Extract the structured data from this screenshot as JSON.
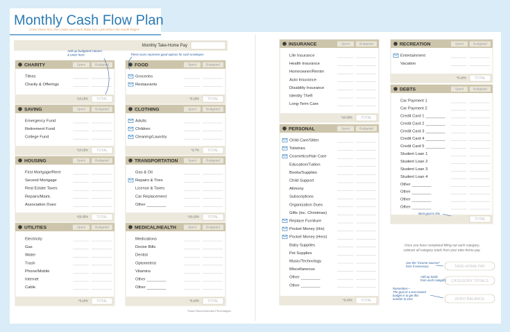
{
  "header": {
    "title": "Monthly Cash Flow Plan",
    "subtitle": "Cover these first, then make sure each dollar has a job before the month begins"
  },
  "take_home": {
    "label": "Monthly Take-Home Pay"
  },
  "sections": [
    {
      "title": "CHARITY",
      "spent": "Spent",
      "budgeted": "Budgeted",
      "items": [
        {
          "label": "Tithes"
        },
        {
          "label": "Charity & Offerings"
        }
      ],
      "percent": "*10-15%",
      "total": "TOTAL"
    },
    {
      "title": "SAVING",
      "spent": "Spent",
      "budgeted": "Budgeted",
      "items": [
        {
          "label": "Emergency Fund"
        },
        {
          "label": "Retirement Fund"
        },
        {
          "label": "College Fund"
        }
      ],
      "percent": "*10-15%",
      "total": "TOTAL"
    },
    {
      "title": "HOUSING",
      "spent": "Spent",
      "budgeted": "Budgeted",
      "items": [
        {
          "label": "First Mortgage/Rent"
        },
        {
          "label": "Second Mortgage"
        },
        {
          "label": "Real Estate Taxes"
        },
        {
          "label": "Repairs/Maint."
        },
        {
          "label": "Association Dues"
        }
      ],
      "percent": "*25-35%",
      "total": "TOTAL"
    },
    {
      "title": "UTILITIES",
      "spent": "Spent",
      "budgeted": "Budgeted",
      "items": [
        {
          "label": "Electricity"
        },
        {
          "label": "Gas"
        },
        {
          "label": "Water"
        },
        {
          "label": "Trash"
        },
        {
          "label": "Phone/Mobile"
        },
        {
          "label": "Internet"
        },
        {
          "label": "Cable"
        }
      ],
      "percent": "*5-10%",
      "total": "TOTAL"
    },
    {
      "title": "FOOD",
      "spent": "Spent",
      "budgeted": "Budgeted",
      "items": [
        {
          "label": "Groceries",
          "envelope": true
        },
        {
          "label": "Restaurants",
          "envelope": true
        }
      ],
      "percent": "*5-15%",
      "total": "TOTAL"
    },
    {
      "title": "CLOTHING",
      "spent": "Spent",
      "budgeted": "Budgeted",
      "items": [
        {
          "label": "Adults",
          "envelope": true
        },
        {
          "label": "Children",
          "envelope": true
        },
        {
          "label": "Cleaning/Laundry",
          "envelope": true
        }
      ],
      "percent": "*2-7%",
      "total": "TOTAL"
    },
    {
      "title": "TRANSPORTATION",
      "spent": "Spent",
      "budgeted": "Budgeted",
      "items": [
        {
          "label": "Gas & Oil"
        },
        {
          "label": "Repairs & Tires",
          "envelope": true
        },
        {
          "label": "License & Taxes"
        },
        {
          "label": "Car Replacement"
        },
        {
          "label": "Other",
          "blank": true
        }
      ],
      "percent": "*10-15%",
      "total": "TOTAL"
    },
    {
      "title": "MEDICAL/HEALTH",
      "spent": "Spent",
      "budgeted": "Budgeted",
      "items": [
        {
          "label": "Medications"
        },
        {
          "label": "Doctor Bills"
        },
        {
          "label": "Dentist"
        },
        {
          "label": "Optometrist"
        },
        {
          "label": "Vitamins"
        },
        {
          "label": "Other",
          "blank": true
        },
        {
          "label": "Other",
          "blank": true
        }
      ],
      "percent": "*5-10%",
      "total": "TOTAL"
    },
    {
      "title": "INSURANCE",
      "spent": "Spent",
      "budgeted": "Budgeted",
      "items": [
        {
          "label": "Life Insurance"
        },
        {
          "label": "Health Insurance"
        },
        {
          "label": "Homeowner/Renter"
        },
        {
          "label": "Auto Insurance"
        },
        {
          "label": "Disability Insurance"
        },
        {
          "label": "Identity Theft"
        },
        {
          "label": "Long-Term Care"
        }
      ],
      "percent": "*10-25%",
      "total": "TOTAL"
    },
    {
      "title": "PERSONAL",
      "spent": "Spent",
      "budgeted": "Budgeted",
      "items": [
        {
          "label": "Child Care/Sitter",
          "envelope": true
        },
        {
          "label": "Toiletries",
          "envelope": true
        },
        {
          "label": "Cosmetics/Hair Care",
          "envelope": true
        },
        {
          "label": "Education/Tuition"
        },
        {
          "label": "Books/Supplies"
        },
        {
          "label": "Child Support"
        },
        {
          "label": "Alimony"
        },
        {
          "label": "Subscriptions"
        },
        {
          "label": "Organization Dues"
        },
        {
          "label": "Gifts (inc. Christmas)"
        },
        {
          "label": "Replace Furniture",
          "envelope": true
        },
        {
          "label": "Pocket Money (His)",
          "envelope": true
        },
        {
          "label": "Pocket Money (Hers)",
          "envelope": true
        },
        {
          "label": "Baby Supplies"
        },
        {
          "label": "Pet Supplies"
        },
        {
          "label": "Music/Technology"
        },
        {
          "label": "Miscellaneous"
        },
        {
          "label": "Other",
          "blank": true
        },
        {
          "label": "Other",
          "blank": true
        }
      ],
      "percent": "*5-10%",
      "total": "TOTAL"
    },
    {
      "title": "RECREATION",
      "spent": "Spent",
      "budgeted": "Budgeted",
      "items": [
        {
          "label": "Entertainment",
          "envelope": true
        },
        {
          "label": "Vacation"
        }
      ],
      "percent": "*5-10%",
      "total": "TOTAL"
    },
    {
      "title": "DEBTS",
      "spent": "Spent",
      "budgeted": "Budgeted",
      "items": [
        {
          "label": "Car Payment 1"
        },
        {
          "label": "Car Payment 2"
        },
        {
          "label": "Credit Card 1",
          "blank": true
        },
        {
          "label": "Credit Card 2",
          "blank": true
        },
        {
          "label": "Credit Card 3",
          "blank": true
        },
        {
          "label": "Credit Card 4",
          "blank": true
        },
        {
          "label": "Credit Card 5",
          "blank": true
        },
        {
          "label": "Student Loan 1"
        },
        {
          "label": "Student Loan 2"
        },
        {
          "label": "Student Loan 3"
        },
        {
          "label": "Student Loan 4"
        },
        {
          "label": "Other",
          "blank": true
        },
        {
          "label": "Other",
          "blank": true
        },
        {
          "label": "Other",
          "blank": true
        },
        {
          "label": "Other",
          "blank": true
        }
      ],
      "total": "TOTAL"
    }
  ],
  "annotations": {
    "budgeted_total": [
      "Add up budgeted column",
      "& enter here"
    ],
    "envelopes": [
      "These icons represent good options for cash envelopes"
    ],
    "debt_goal": [
      "Best goal is 0%"
    ]
  },
  "summary": {
    "instructions": [
      "Once you have completed filling out each category,",
      "subtract all category totals from your take-home pay."
    ],
    "boxes": [
      "TAKE-HOME PAY",
      "CATEGORY TOTALS",
      "ZERO BALANCE"
    ],
    "notes": [
      [
        "Use the “income sources”",
        "form if necessary"
      ],
      [
        "Add up totals",
        "from each category"
      ],
      [
        "Remember—",
        "The goal of a zero-based",
        "budget is to get this",
        "number to zero"
      ]
    ]
  },
  "footnote": "*Dave Recommended Percentages"
}
